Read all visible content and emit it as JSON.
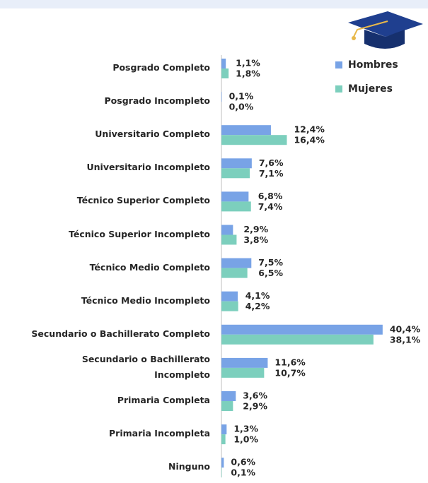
{
  "chart_data": {
    "type": "bar",
    "orientation": "horizontal",
    "categories": [
      "Posgrado Completo",
      "Posgrado Incompleto",
      "Universitario Completo",
      "Universitario Incompleto",
      "Técnico Superior Completo",
      "Técnico Superior Incompleto",
      "Técnico Medio Completo",
      "Técnico Medio Incompleto",
      "Secundario o Bachillerato Completo",
      "Secundario o Bachillerato\nIncompleto",
      "Primaria Completa",
      "Primaria Incompleta",
      "Ninguno"
    ],
    "series": [
      {
        "name": "Hombres",
        "color": "#78a3e6",
        "values": [
          1.1,
          0.1,
          12.4,
          7.6,
          6.8,
          2.9,
          7.5,
          4.1,
          40.4,
          11.6,
          3.6,
          1.3,
          0.6
        ],
        "value_labels": [
          "1,1%",
          "0,1%",
          "12,4%",
          "7,6%",
          "6,8%",
          "2,9%",
          "7,5%",
          "4,1%",
          "40,4%",
          "11,6%",
          "3,6%",
          "1,3%",
          "0,6%"
        ]
      },
      {
        "name": "Mujeres",
        "color": "#7ccfbd",
        "values": [
          1.8,
          0.0,
          16.4,
          7.1,
          7.4,
          3.8,
          6.5,
          4.2,
          38.1,
          10.7,
          2.9,
          1.0,
          0.1
        ],
        "value_labels": [
          "1,8%",
          "0,0%",
          "16,4%",
          "7,1%",
          "7,4%",
          "3,8%",
          "6,5%",
          "4,2%",
          "38,1%",
          "10,7%",
          "2,9%",
          "1,0%",
          "0,1%"
        ]
      }
    ],
    "legend": "upper right"
  }
}
